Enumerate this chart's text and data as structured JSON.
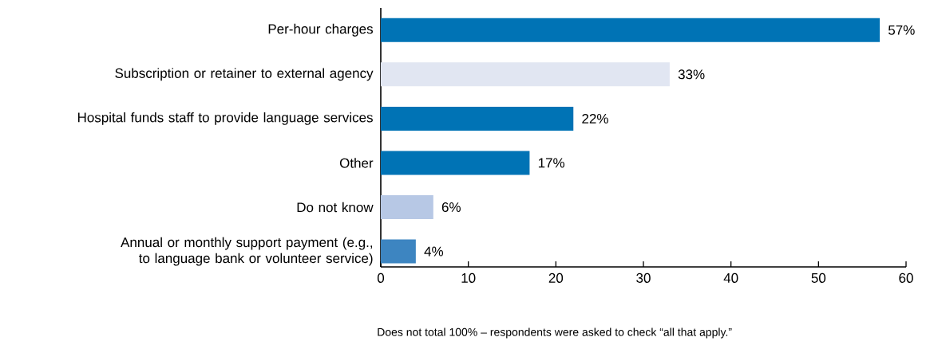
{
  "chart_data": {
    "type": "bar",
    "orientation": "horizontal",
    "categories": [
      "Per-hour charges",
      "Subscription or retainer to external agency",
      "Hospital funds staff to provide language services",
      "Other",
      "Do not know",
      "Annual or monthly support payment (e.g., to language bank or volunteer service)"
    ],
    "values": [
      57,
      33,
      22,
      17,
      6,
      4
    ],
    "colors": [
      "#0073b5",
      "#e1e6f2",
      "#0073b5",
      "#0073b5",
      "#b7c8e5",
      "#3d85c1"
    ],
    "value_labels": [
      "57%",
      "33%",
      "22%",
      "17%",
      "6%",
      "4%"
    ],
    "xlim": [
      0,
      60
    ],
    "xticks": [
      0,
      10,
      20,
      30,
      40,
      50,
      60
    ],
    "grid": false,
    "annotations": [
      "Does not total 100% – respondents were asked to check “all that apply.”"
    ]
  }
}
